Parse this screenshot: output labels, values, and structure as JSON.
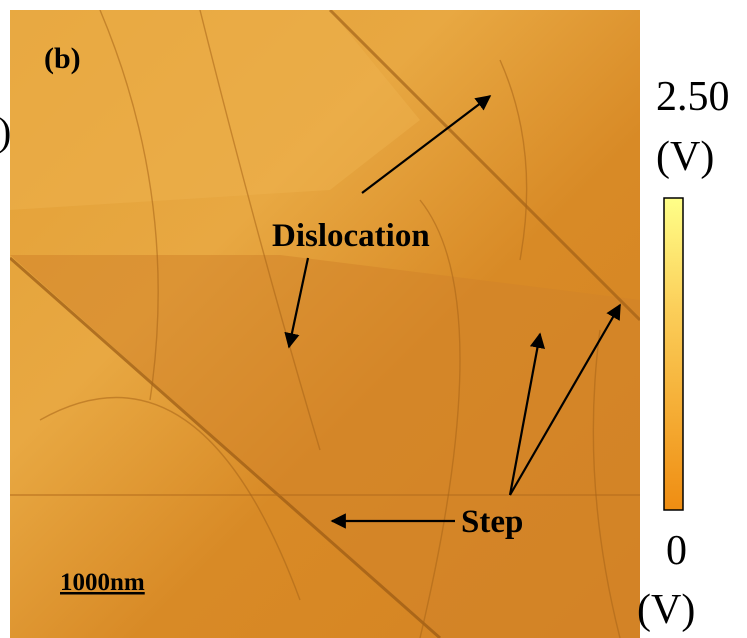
{
  "figure": {
    "panel_label": "(b)",
    "left_fragment": ")",
    "annotations": {
      "dislocation": "Dislocation",
      "step": "Step"
    },
    "scale_bar": "1000nm",
    "colorbar": {
      "max_label": "2.50",
      "max_unit": "(V)",
      "min_label": "0",
      "min_unit": "(V)"
    }
  }
}
